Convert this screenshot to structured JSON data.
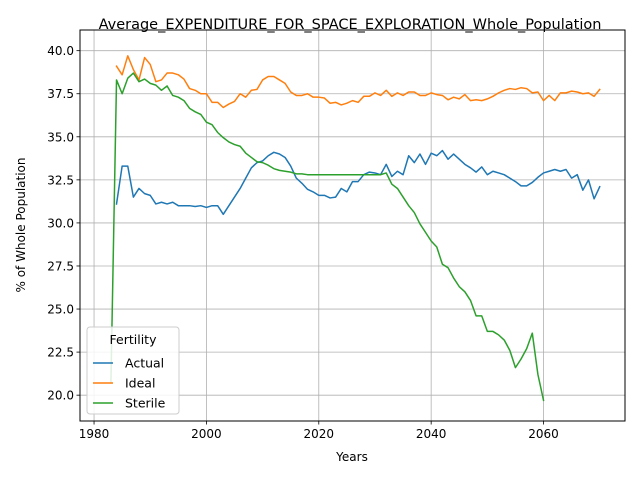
{
  "chart_data": {
    "type": "line",
    "title": "Average_EXPENDITURE_FOR_SPACE_EXPLORATION_Whole_Population",
    "xlabel": "Years",
    "ylabel": "% of Whole Population",
    "xlim": [
      1977.5,
      2074.5
    ],
    "ylim": [
      18.5,
      41.2
    ],
    "xticks": [
      1980,
      2000,
      2020,
      2040,
      2060
    ],
    "xtick_labels": [
      "1980",
      "2000",
      "2020",
      "2040",
      "2060"
    ],
    "yticks": [
      20.0,
      22.5,
      25.0,
      27.5,
      30.0,
      32.5,
      35.0,
      37.5,
      40.0
    ],
    "ytick_labels": [
      "20.0",
      "22.5",
      "25.0",
      "27.5",
      "30.0",
      "32.5",
      "35.0",
      "37.5",
      "40.0"
    ],
    "grid": true,
    "legend": {
      "title": "Fertility",
      "location": "lower-left"
    },
    "series": [
      {
        "name": "Actual",
        "color": "#1f77b4",
        "x": [
          1984,
          1985,
          1986,
          1987,
          1988,
          1989,
          1990,
          1991,
          1992,
          1993,
          1994,
          1995,
          1996,
          1997,
          1998,
          1999,
          2000,
          2001,
          2002,
          2003,
          2004,
          2005,
          2006,
          2007,
          2008,
          2009,
          2010,
          2011,
          2012,
          2013,
          2014,
          2015,
          2016,
          2017,
          2018,
          2019,
          2020,
          2021,
          2022,
          2023,
          2024,
          2025,
          2026,
          2027,
          2028,
          2029,
          2030,
          2031,
          2032,
          2033,
          2034,
          2035,
          2036,
          2037,
          2038,
          2039,
          2040,
          2041,
          2042,
          2043,
          2044,
          2045,
          2046,
          2047,
          2048,
          2049,
          2050,
          2051,
          2052,
          2053,
          2054,
          2055,
          2056,
          2057,
          2058,
          2059,
          2060,
          2061,
          2062,
          2063,
          2064,
          2065,
          2066,
          2067,
          2068,
          2069,
          2070
        ],
        "values": [
          31.1,
          33.3,
          33.3,
          31.5,
          32.0,
          31.7,
          31.6,
          31.1,
          31.2,
          31.1,
          31.2,
          31.0,
          31.0,
          31.0,
          30.95,
          31.0,
          30.9,
          31.0,
          31.0,
          30.5,
          31.0,
          31.5,
          32.0,
          32.6,
          33.2,
          33.5,
          33.6,
          33.9,
          34.1,
          34.0,
          33.8,
          33.3,
          32.6,
          32.3,
          31.95,
          31.8,
          31.6,
          31.6,
          31.45,
          31.5,
          32.0,
          31.8,
          32.4,
          32.4,
          32.8,
          32.95,
          32.9,
          32.8,
          33.4,
          32.7,
          33.0,
          32.8,
          33.9,
          33.5,
          34.0,
          33.4,
          34.05,
          33.9,
          34.2,
          33.7,
          34.0,
          33.7,
          33.4,
          33.2,
          32.95,
          33.25,
          32.8,
          33.0,
          32.9,
          32.8,
          32.6,
          32.4,
          32.15,
          32.15,
          32.35,
          32.65,
          32.9,
          33.0,
          33.1,
          33.0,
          33.1,
          32.6,
          32.8,
          31.9,
          32.5,
          31.4,
          32.1
        ]
      },
      {
        "name": "Ideal",
        "color": "#ff7f0e",
        "x": [
          1984,
          1985,
          1986,
          1987,
          1988,
          1989,
          1990,
          1991,
          1992,
          1993,
          1994,
          1995,
          1996,
          1997,
          1998,
          1999,
          2000,
          2001,
          2002,
          2003,
          2004,
          2005,
          2006,
          2007,
          2008,
          2009,
          2010,
          2011,
          2012,
          2013,
          2014,
          2015,
          2016,
          2017,
          2018,
          2019,
          2020,
          2021,
          2022,
          2023,
          2024,
          2025,
          2026,
          2027,
          2028,
          2029,
          2030,
          2031,
          2032,
          2033,
          2034,
          2035,
          2036,
          2037,
          2038,
          2039,
          2040,
          2041,
          2042,
          2043,
          2044,
          2045,
          2046,
          2047,
          2048,
          2049,
          2050,
          2051,
          2052,
          2053,
          2054,
          2055,
          2056,
          2057,
          2058,
          2059,
          2060,
          2061,
          2062,
          2063,
          2064,
          2065,
          2066,
          2067,
          2068,
          2069,
          2070
        ],
        "values": [
          39.1,
          38.6,
          39.7,
          38.9,
          38.3,
          39.6,
          39.2,
          38.2,
          38.3,
          38.7,
          38.7,
          38.6,
          38.35,
          37.8,
          37.7,
          37.5,
          37.5,
          37.0,
          37.0,
          36.7,
          36.9,
          37.05,
          37.5,
          37.3,
          37.7,
          37.75,
          38.3,
          38.5,
          38.5,
          38.3,
          38.1,
          37.6,
          37.4,
          37.4,
          37.5,
          37.3,
          37.3,
          37.25,
          36.95,
          37.0,
          36.85,
          36.95,
          37.1,
          37.0,
          37.35,
          37.35,
          37.55,
          37.4,
          37.7,
          37.35,
          37.55,
          37.4,
          37.6,
          37.6,
          37.4,
          37.4,
          37.55,
          37.45,
          37.4,
          37.15,
          37.3,
          37.2,
          37.45,
          37.1,
          37.15,
          37.1,
          37.2,
          37.35,
          37.55,
          37.7,
          37.8,
          37.75,
          37.85,
          37.8,
          37.55,
          37.6,
          37.1,
          37.4,
          37.1,
          37.55,
          37.55,
          37.65,
          37.6,
          37.5,
          37.55,
          37.35,
          37.75
        ]
      },
      {
        "name": "Sterile",
        "color": "#2ca02c",
        "x": [
          1983,
          1984,
          1985,
          1986,
          1987,
          1988,
          1989,
          1990,
          1991,
          1992,
          1993,
          1994,
          1995,
          1996,
          1997,
          1998,
          1999,
          2000,
          2001,
          2002,
          2003,
          2004,
          2005,
          2006,
          2007,
          2008,
          2009,
          2010,
          2011,
          2012,
          2013,
          2014,
          2015,
          2016,
          2017,
          2018,
          2019,
          2020,
          2021,
          2022,
          2023,
          2024,
          2025,
          2026,
          2027,
          2028,
          2029,
          2030,
          2031,
          2032,
          2033,
          2034,
          2035,
          2036,
          2037,
          2038,
          2039,
          2040,
          2041,
          2042,
          2043,
          2044,
          2045,
          2046,
          2047,
          2048,
          2049,
          2050,
          2051,
          2052,
          2053,
          2054,
          2055,
          2056,
          2057,
          2058,
          2059,
          2060
        ],
        "values": [
          20.7,
          38.3,
          37.5,
          38.4,
          38.7,
          38.2,
          38.35,
          38.1,
          38.0,
          37.7,
          37.95,
          37.4,
          37.3,
          37.1,
          36.65,
          36.45,
          36.3,
          35.85,
          35.7,
          35.25,
          34.95,
          34.7,
          34.55,
          34.45,
          34.05,
          33.8,
          33.55,
          33.5,
          33.35,
          33.15,
          33.05,
          33.0,
          32.95,
          32.85,
          32.85,
          32.8,
          32.8,
          32.8,
          32.8,
          32.8,
          32.8,
          32.8,
          32.8,
          32.8,
          32.8,
          32.8,
          32.8,
          32.8,
          32.8,
          32.9,
          32.25,
          32.0,
          31.5,
          31.0,
          30.6,
          29.95,
          29.45,
          28.95,
          28.6,
          27.6,
          27.4,
          26.8,
          26.3,
          26.0,
          25.5,
          24.6,
          24.6,
          23.7,
          23.7,
          23.5,
          23.2,
          22.6,
          21.6,
          22.1,
          22.7,
          23.6,
          21.2,
          19.7
        ]
      }
    ]
  }
}
